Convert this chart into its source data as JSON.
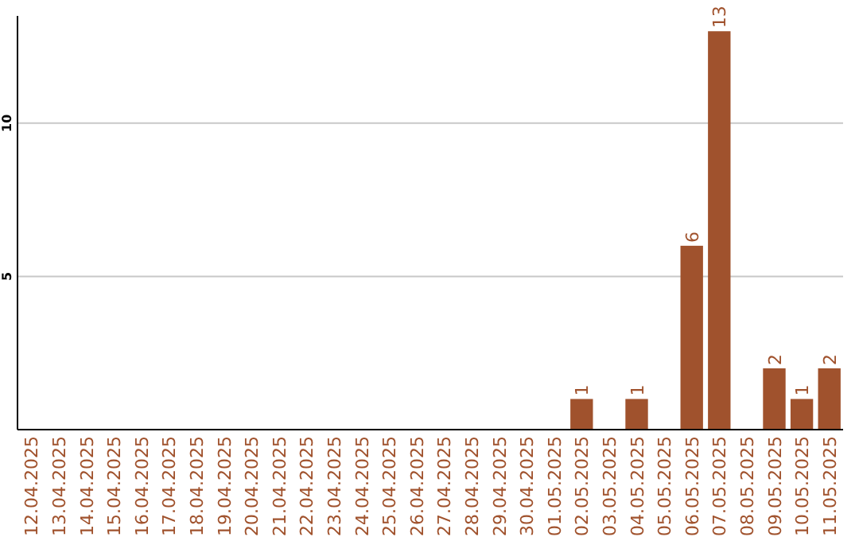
{
  "chart_data": {
    "type": "bar",
    "categories": [
      "12.04.2025",
      "13.04.2025",
      "14.04.2025",
      "15.04.2025",
      "16.04.2025",
      "17.04.2025",
      "18.04.2025",
      "19.04.2025",
      "20.04.2025",
      "21.04.2025",
      "22.04.2025",
      "23.04.2025",
      "24.04.2025",
      "25.04.2025",
      "26.04.2025",
      "27.04.2025",
      "28.04.2025",
      "29.04.2025",
      "30.04.2025",
      "01.05.2025",
      "02.05.2025",
      "03.05.2025",
      "04.05.2025",
      "05.05.2025",
      "06.05.2025",
      "07.05.2025",
      "08.05.2025",
      "09.05.2025",
      "10.05.2025",
      "11.05.2025"
    ],
    "values": [
      0,
      0,
      0,
      0,
      0,
      0,
      0,
      0,
      0,
      0,
      0,
      0,
      0,
      0,
      0,
      0,
      0,
      0,
      0,
      0,
      1,
      0,
      1,
      0,
      6,
      13,
      0,
      2,
      1,
      2
    ],
    "value_labels": [
      null,
      null,
      null,
      null,
      null,
      null,
      null,
      null,
      null,
      null,
      null,
      null,
      null,
      null,
      null,
      null,
      null,
      null,
      null,
      null,
      "1",
      null,
      "1",
      null,
      "6",
      "13",
      null,
      "2",
      "1",
      "2"
    ],
    "color": "#a0522d",
    "ylim": [
      0,
      13.5
    ],
    "yticks": [
      5,
      10
    ],
    "grid": "y"
  }
}
